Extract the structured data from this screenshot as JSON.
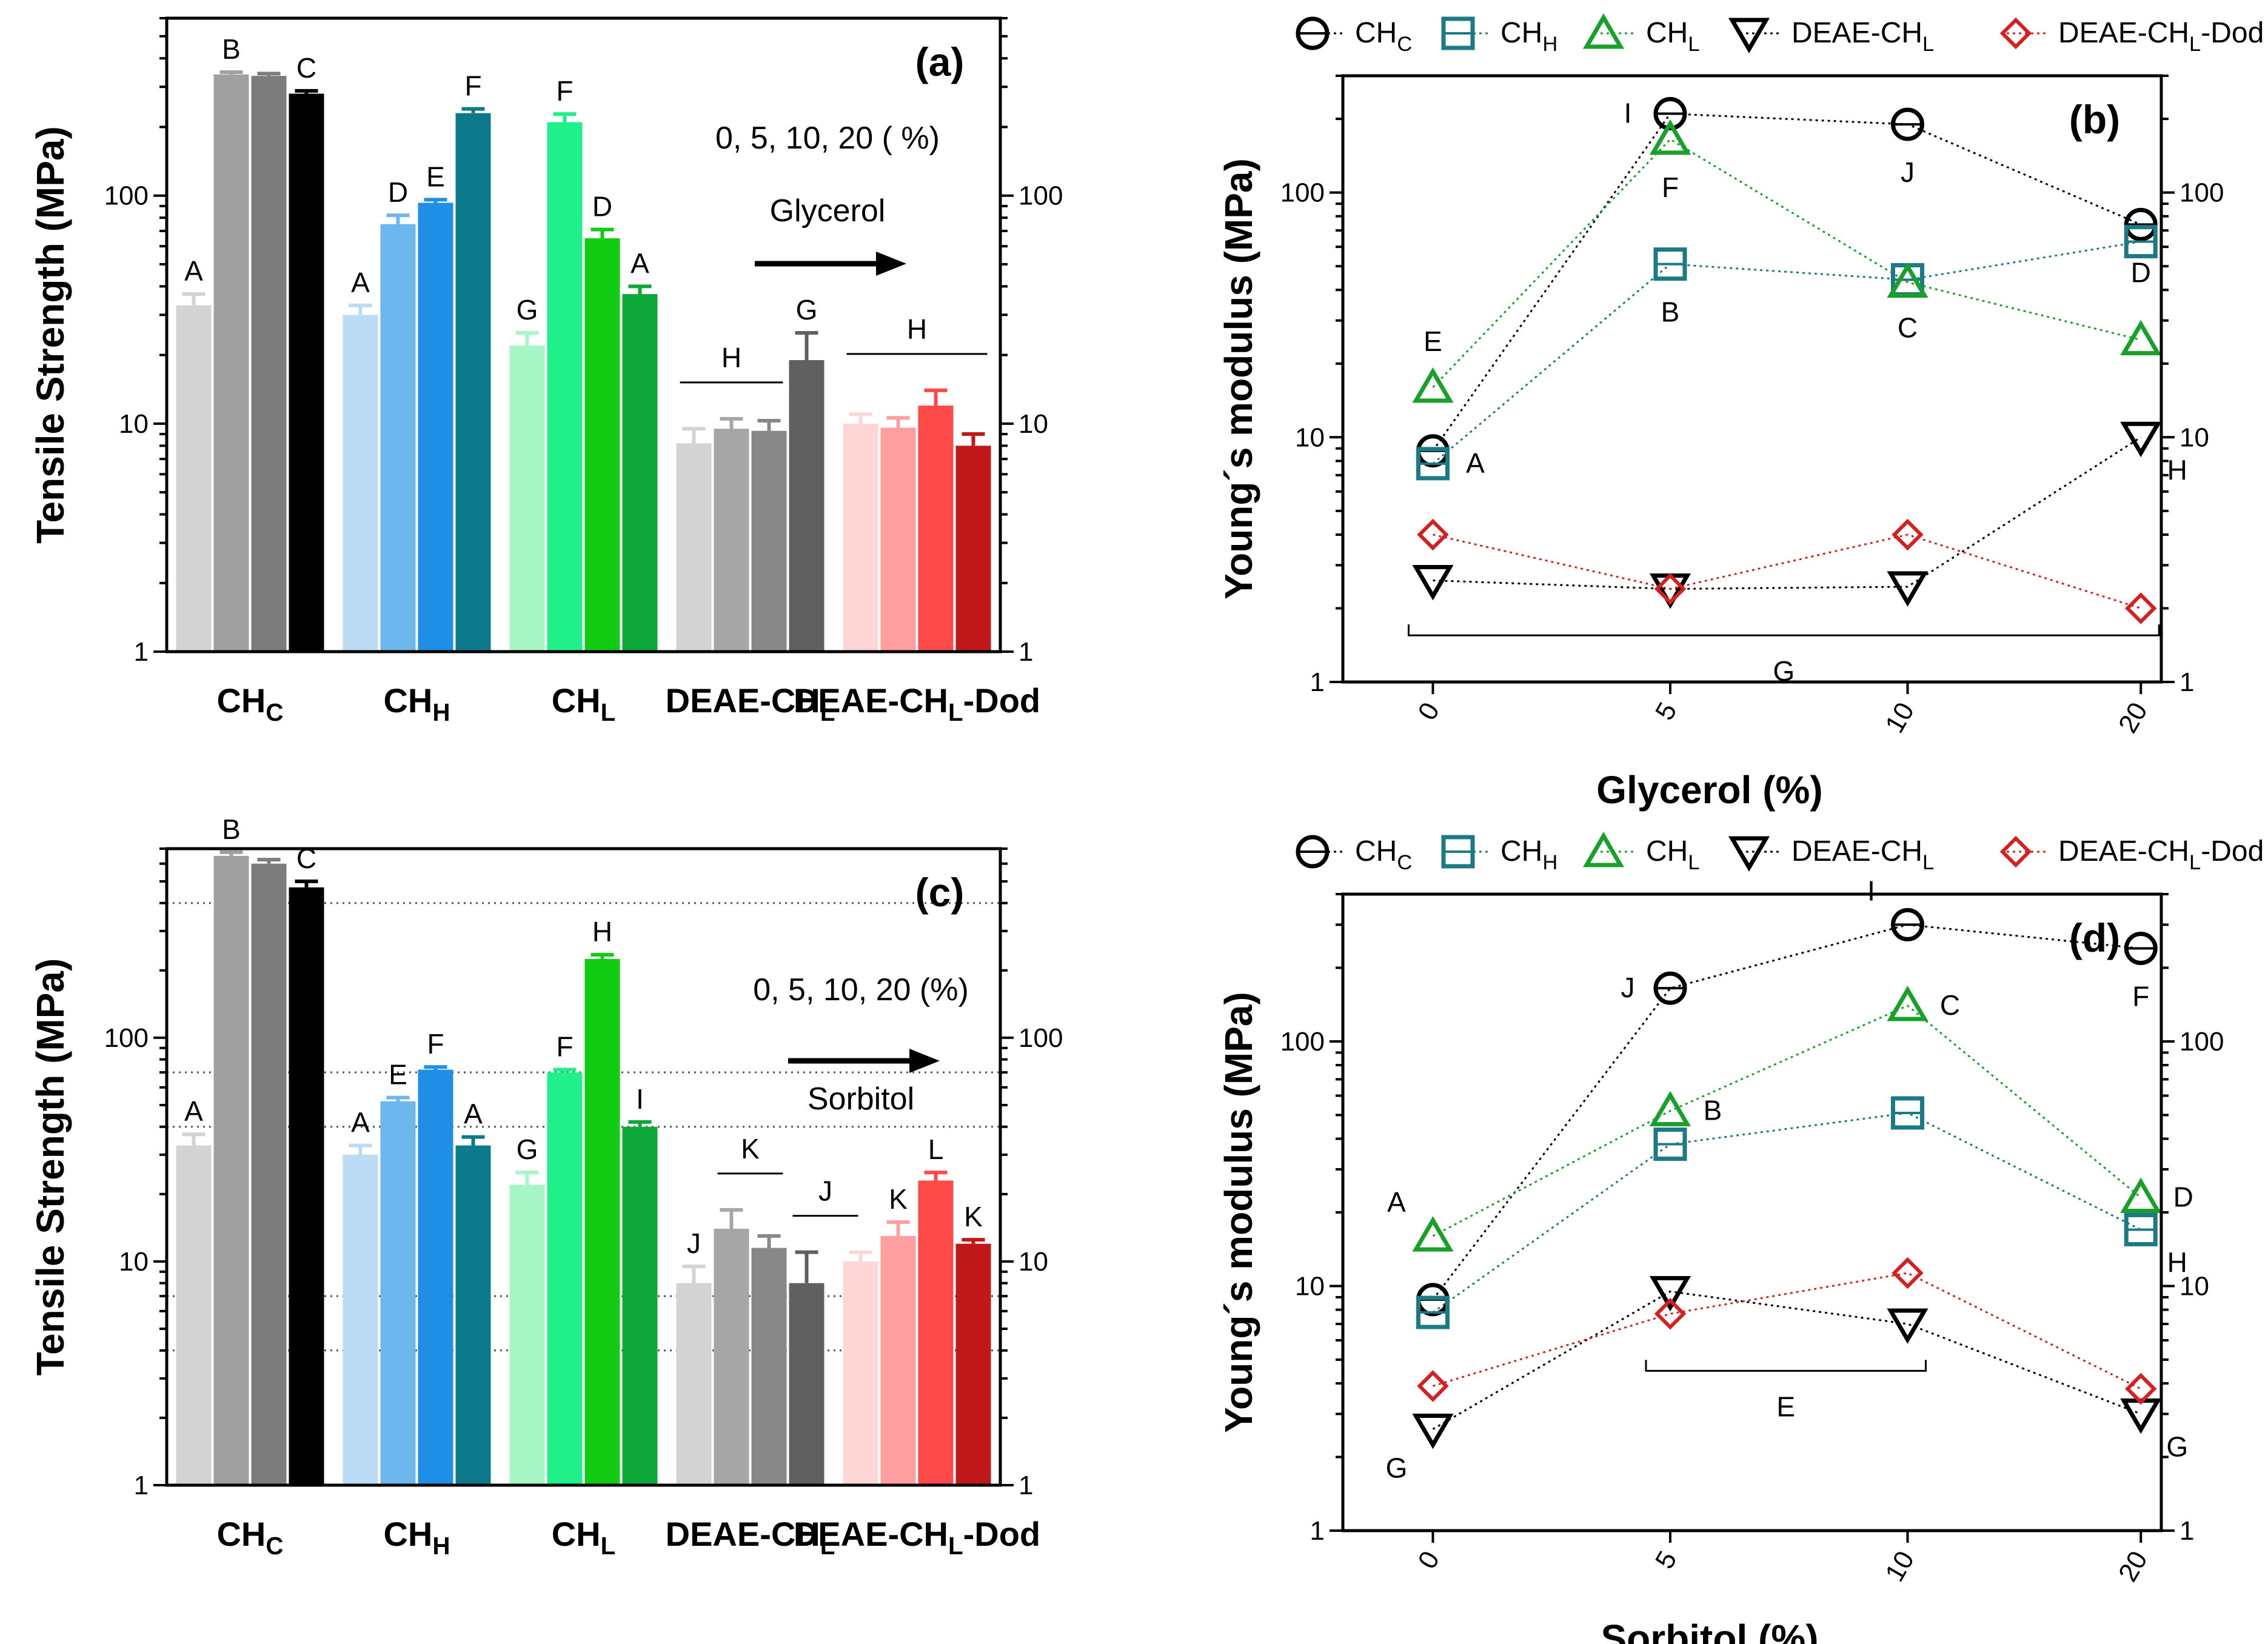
{
  "colors": {
    "CHC": [
      "#d3d3d3",
      "#a0a0a0",
      "#7c7c7c",
      "#000000"
    ],
    "CHH": [
      "#bcdcf5",
      "#6cb7ee",
      "#1e8ee6",
      "#0c7a8a"
    ],
    "CHL": [
      "#a7f7c6",
      "#20f08a",
      "#12cc14",
      "#0ca83a"
    ],
    "DEAE": [
      "#d3d3d3",
      "#a6a6a6",
      "#888888",
      "#606060"
    ],
    "DEAEDod": [
      "#ffd6d6",
      "#ff9f9f",
      "#ff4a4a",
      "#c01818"
    ],
    "line_CHC": "#000000",
    "line_CHH": "#1c7a86",
    "line_CHL": "#18a02a",
    "line_DEAE": "#000000",
    "line_DEAEDod": "#d42020"
  },
  "chart_data": [
    {
      "panel": "(a)",
      "type": "bar",
      "scale": "log",
      "ylim": [
        1,
        600
      ],
      "ylabel": "Tensile Strength (MPa)",
      "right_ticks": [
        "1",
        "10",
        "100"
      ],
      "left_ticks": [
        "1",
        "10",
        "100"
      ],
      "note_line1": "0,  5, 10, 20 ( %)",
      "note_line2": "Glycerol",
      "groups": [
        {
          "name": "CH",
          "sub": "C",
          "values": [
            33,
            340,
            335,
            280
          ],
          "errors": [
            4,
            8,
            8,
            8
          ],
          "letters": [
            "A",
            "B",
            "",
            "C"
          ],
          "colors": "CHC"
        },
        {
          "name": "CH",
          "sub": "H",
          "values": [
            30,
            75,
            93,
            230
          ],
          "errors": [
            3,
            7,
            3,
            10
          ],
          "letters": [
            "A",
            "D",
            "E",
            "F"
          ],
          "colors": "CHH"
        },
        {
          "name": "CH",
          "sub": "L",
          "values": [
            22,
            210,
            65,
            37
          ],
          "errors": [
            3,
            18,
            6,
            3
          ],
          "letters": [
            "G",
            "F",
            "D",
            "A"
          ],
          "colors": "CHL"
        },
        {
          "name": "DEAE-CH",
          "sub": "L",
          "values": [
            8.2,
            9.5,
            9.3,
            19
          ],
          "errors": [
            1.3,
            1,
            1,
            6
          ],
          "letters": [
            "",
            "",
            "",
            "G"
          ],
          "colors": "DEAE"
        },
        {
          "name": "DEAE-CH",
          "sub": "L",
          "suffix": "-Dod",
          "values": [
            10,
            9.6,
            12,
            8
          ],
          "errors": [
            1,
            1,
            2,
            1
          ],
          "letters": [
            "",
            "",
            "",
            ""
          ],
          "colors": "DEAEDod"
        }
      ],
      "annotations": [
        {
          "text": "H",
          "group": 3,
          "span": [
            0,
            2
          ]
        },
        {
          "text": "H",
          "group": 4,
          "span": [
            0,
            3
          ]
        }
      ]
    },
    {
      "panel": "(b)",
      "type": "line",
      "scale": "log",
      "ylim": [
        1,
        300
      ],
      "ylabel": "Young´s modulus (MPa)",
      "xlabel": "Glycerol (%)",
      "categories": [
        "0",
        "5",
        "10",
        "20"
      ],
      "left_ticks": [
        "1",
        "10",
        "100"
      ],
      "right_ticks": [
        "1",
        "10",
        "100"
      ],
      "legend": [
        {
          "main": "CH",
          "sub": "C",
          "suffix": "",
          "key": "CHC"
        },
        {
          "main": "CH",
          "sub": "H",
          "suffix": "",
          "key": "CHH"
        },
        {
          "main": "CH",
          "sub": "L",
          "suffix": "",
          "key": "CHL"
        },
        {
          "main": "DEAE-CH",
          "sub": "L",
          "suffix": "",
          "key": "DEAE"
        },
        {
          "main": "DEAE-CH",
          "sub": "L",
          "suffix": "-Dod",
          "key": "DEAEDod"
        }
      ],
      "series": [
        {
          "name": "CHC",
          "marker": "circle",
          "values": [
            8.8,
            210,
            190,
            74
          ],
          "letters": [
            {
              "i": 1,
              "text": "I",
              "side": "left"
            },
            {
              "i": 2,
              "text": "J",
              "side": "below"
            },
            {
              "i": 3,
              "text": "D",
              "side": "below"
            }
          ]
        },
        {
          "name": "CHH",
          "marker": "square",
          "values": [
            7.8,
            51,
            44,
            63
          ],
          "letters": [
            {
              "i": 0,
              "text": "A",
              "side": "right"
            },
            {
              "i": 1,
              "text": "B",
              "side": "below"
            },
            {
              "i": 2,
              "text": "C",
              "side": "below"
            }
          ]
        },
        {
          "name": "CHL",
          "marker": "triangle",
          "values": [
            16,
            165,
            43,
            25
          ],
          "letters": [
            {
              "i": 0,
              "text": "E",
              "side": "above"
            },
            {
              "i": 1,
              "text": "F",
              "side": "below"
            }
          ]
        },
        {
          "name": "DEAE",
          "marker": "tri-down",
          "values": [
            2.6,
            2.4,
            2.45,
            10
          ],
          "letters": [
            {
              "i": 3,
              "text": "H",
              "side": "belowright"
            }
          ]
        },
        {
          "name": "DEAEDod",
          "marker": "diamond",
          "values": [
            4.0,
            2.4,
            4.0,
            2.0
          ],
          "letters": []
        }
      ],
      "bracket": {
        "text": "G",
        "from": 0,
        "to": 3,
        "value": 1.55
      }
    },
    {
      "panel": "(c)",
      "type": "bar",
      "scale": "log",
      "ylim": [
        1,
        700
      ],
      "ylabel": "Tensile Strength (MPa)",
      "left_ticks": [
        "1",
        "10",
        "100"
      ],
      "right_ticks": [
        "1",
        "10",
        "100"
      ],
      "note_line1": "0,  5, 10, 20 (%)",
      "note_line2": "Sorbitol",
      "gridlines": [
        400,
        70,
        40,
        7,
        4
      ],
      "groups": [
        {
          "name": "CH",
          "sub": "C",
          "values": [
            33,
            650,
            600,
            470
          ],
          "errors": [
            4,
            25,
            25,
            30
          ],
          "letters": [
            "",
            "B",
            "",
            "C"
          ],
          "colors": "CHC"
        },
        {
          "name": "CH",
          "sub": "H",
          "values": [
            30,
            52,
            72,
            33
          ],
          "errors": [
            3,
            2,
            2,
            3
          ],
          "letters": [
            "A",
            "E",
            "F",
            "A"
          ],
          "colors": "CHH"
        },
        {
          "name": "CH",
          "sub": "L",
          "values": [
            22,
            70,
            225,
            40
          ],
          "errors": [
            3,
            2,
            10,
            2
          ],
          "letters": [
            "G",
            "F",
            "H",
            "I"
          ],
          "colors": "CHL"
        },
        {
          "name": "DEAE-CH",
          "sub": "L",
          "values": [
            8,
            14,
            11.5,
            8
          ],
          "errors": [
            1.5,
            3,
            1.5,
            3
          ],
          "letters": [
            "J",
            "",
            "",
            ""
          ],
          "colors": "DEAE"
        },
        {
          "name": "DEAE-CH",
          "sub": "L",
          "suffix": "-Dod",
          "values": [
            10,
            13,
            23,
            12
          ],
          "errors": [
            1,
            2,
            2,
            0.5
          ],
          "letters": [
            "",
            "K",
            "L",
            "K"
          ],
          "colors": "DEAEDod"
        }
      ],
      "extra_letters": [
        {
          "text": "A",
          "group": 0,
          "bar": 0
        }
      ],
      "annotations": [
        {
          "text": "K",
          "group": 3,
          "span": [
            1,
            2
          ]
        },
        {
          "text": "J",
          "group": 3,
          "span": [
            3,
            4
          ]
        }
      ]
    },
    {
      "panel": "(d)",
      "type": "line",
      "scale": "log",
      "ylim": [
        1,
        400
      ],
      "ylabel": "Young´s modulus (MPa)",
      "xlabel": "Sorbitol (%)",
      "categories": [
        "0",
        "5",
        "10",
        "20"
      ],
      "left_ticks": [
        "1",
        "10",
        "100"
      ],
      "right_ticks": [
        "1",
        "10",
        "100"
      ],
      "legend": [
        {
          "main": "CH",
          "sub": "C",
          "suffix": "",
          "key": "CHC"
        },
        {
          "main": "CH",
          "sub": "H",
          "suffix": "",
          "key": "CHH"
        },
        {
          "main": "CH",
          "sub": "L",
          "suffix": "",
          "key": "CHL"
        },
        {
          "main": "DEAE-CH",
          "sub": "L",
          "suffix": "",
          "key": "DEAE"
        },
        {
          "main": "DEAE-CH",
          "sub": "L",
          "suffix": "-Dod",
          "key": "DEAEDod"
        }
      ],
      "series": [
        {
          "name": "CHC",
          "marker": "circle",
          "values": [
            8.8,
            165,
            300,
            240
          ],
          "letters": [
            {
              "i": 1,
              "text": "J",
              "side": "left"
            },
            {
              "i": 2,
              "text": "I",
              "side": "upleft"
            },
            {
              "i": 3,
              "text": "F",
              "side": "below"
            }
          ]
        },
        {
          "name": "CHH",
          "marker": "square",
          "values": [
            7.8,
            38,
            51,
            17
          ],
          "letters": [
            {
              "i": 3,
              "text": "H",
              "side": "belowright"
            }
          ]
        },
        {
          "name": "CHL",
          "marker": "triangle",
          "values": [
            16,
            52,
            140,
            23
          ],
          "letters": [
            {
              "i": 0,
              "text": "A",
              "side": "upleft"
            },
            {
              "i": 1,
              "text": "B",
              "side": "right"
            },
            {
              "i": 2,
              "text": "C",
              "side": "right"
            },
            {
              "i": 3,
              "text": "D",
              "side": "right"
            }
          ]
        },
        {
          "name": "DEAE",
          "marker": "tri-down",
          "values": [
            2.6,
            9.5,
            7,
            3
          ],
          "letters": [
            {
              "i": 0,
              "text": "G",
              "side": "belowleft"
            },
            {
              "i": 3,
              "text": "G",
              "side": "belowright"
            }
          ]
        },
        {
          "name": "DEAEDod",
          "marker": "diamond",
          "values": [
            3.9,
            7.7,
            11.3,
            3.8
          ],
          "letters": []
        }
      ],
      "bracket": {
        "text": "E",
        "from": 1,
        "to": 2,
        "value": 4.5,
        "up": true
      }
    }
  ]
}
